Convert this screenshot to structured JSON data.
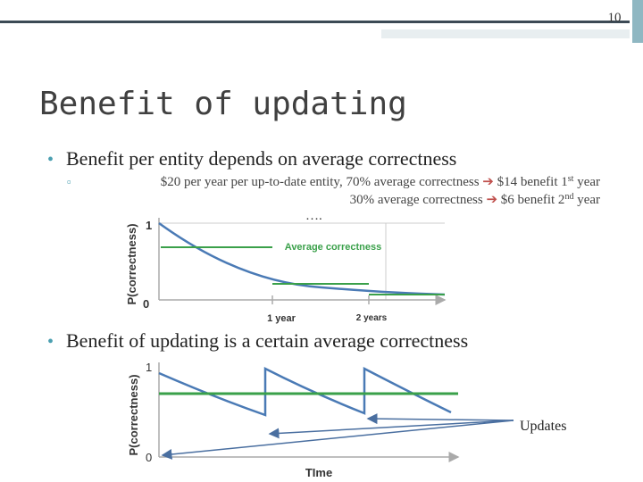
{
  "slide_number": "10",
  "title": "Benefit of updating",
  "bullet_1": {
    "text": "Benefit per entity depends on average correctness",
    "sub_bullet": {
      "line_1": {
        "before": "$20 per year per up-to-date entity, 70% average correctness",
        "after": "$14 benefit 1",
        "sup": "st",
        "end": "year"
      },
      "line_2": {
        "before": "30% average correctness",
        "after": "$6 benefit 2",
        "sup": "nd",
        "end": "year"
      },
      "line_3": "…."
    }
  },
  "figure_1": {
    "y_top": "1",
    "y_bottom": "0",
    "y_label": "P(correctness)",
    "annotation": "Average correctness",
    "x_label_1": "1 year",
    "x_label_2": "2 years"
  },
  "bullet_2": {
    "text": "Benefit of updating is a certain average correctness"
  },
  "figure_2": {
    "y_top": "1",
    "y_bottom": "0",
    "y_label": "P(correctness)",
    "x_label": "TIme",
    "annotation": "Updates"
  }
}
